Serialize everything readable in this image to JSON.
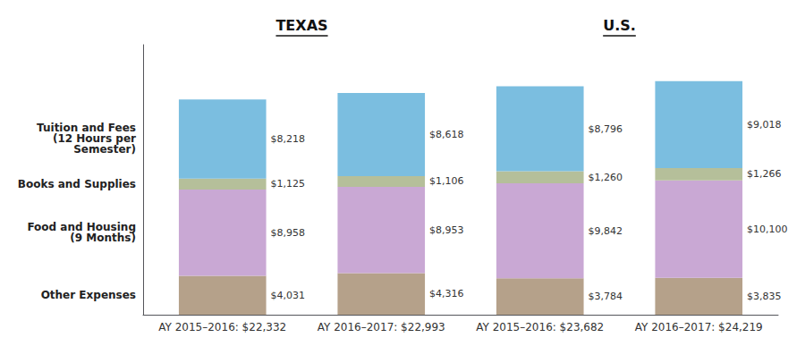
{
  "chart_data": {
    "type": "bar",
    "stacked": true,
    "data_labels": true,
    "tick_labels": "x",
    "grid": false,
    "categories": [
      "AY 2015–2016: $22,332",
      "AY 2016–2017: $22,993",
      "AY 2015–2016: $23,682",
      "AY 2016–2017: $24,219"
    ],
    "series": [
      {
        "name": "Other Expenses",
        "color": "#b5a18a",
        "values": [
          4031,
          4316,
          3784,
          3835
        ],
        "value_labels": [
          "$4,031",
          "$4,316",
          "$3,784",
          "$3,835"
        ]
      },
      {
        "name": "Food and Housing\n(9 Months)",
        "color": "#c9a8d4",
        "values": [
          8958,
          8953,
          9842,
          10100
        ],
        "value_labels": [
          "$8,958",
          "$8,953",
          "$9,842",
          "$10,100"
        ]
      },
      {
        "name": "Books and Supplies",
        "color": "#b5bf9a",
        "values": [
          1125,
          1106,
          1260,
          1266
        ],
        "value_labels": [
          "$1,125",
          "$1,106",
          "$1,260",
          "$1,266"
        ]
      },
      {
        "name": "Tuition and Fees\n(12 Hours per\nSemester)",
        "color": "#7bbee0",
        "values": [
          8218,
          8618,
          8796,
          9018
        ],
        "value_labels": [
          "$8,218",
          "$8,618",
          "$8,796",
          "$9,018"
        ]
      }
    ],
    "ylim": [
      0,
      28000
    ],
    "annotations": [
      "TEXAS",
      "U.S."
    ]
  }
}
